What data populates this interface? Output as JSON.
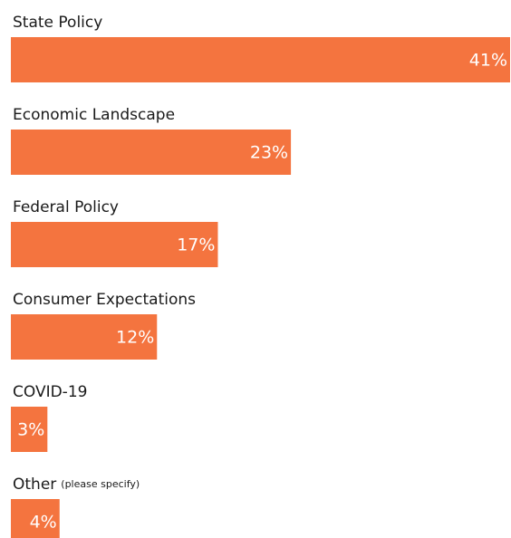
{
  "chart_data": {
    "type": "bar",
    "categories": [
      "State Policy",
      "Economic Landscape",
      "Federal Policy",
      "Consumer Expectations",
      "COVID-19",
      "Other"
    ],
    "category_notes": [
      null,
      null,
      null,
      null,
      null,
      "(please specify)"
    ],
    "values": [
      41,
      23,
      17,
      12,
      3,
      4
    ],
    "value_labels": [
      "41%",
      "23%",
      "17%",
      "12%",
      "3%",
      "4%"
    ],
    "color": "#f4743f"
  }
}
